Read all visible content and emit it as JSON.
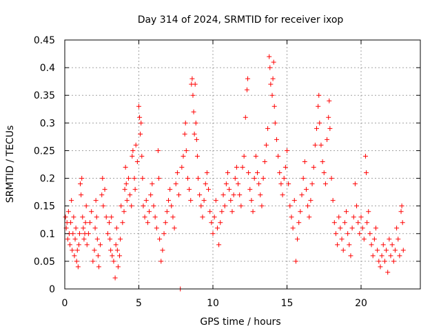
{
  "chart_data": {
    "type": "scatter",
    "title": "Day 314 of 2024, SRMTID for receiver ixop",
    "xlabel": "GPS time / hours",
    "ylabel": "SRMTID / TECUs",
    "xlim": [
      0,
      24
    ],
    "ylim": [
      0,
      0.45
    ],
    "x_ticks": [
      0,
      5,
      10,
      15,
      20
    ],
    "x_tick_labels": [
      "0",
      "5",
      "10",
      "15",
      "20"
    ],
    "y_ticks": [
      0,
      0.05,
      0.1,
      0.15,
      0.2,
      0.25,
      0.3,
      0.35,
      0.4,
      0.45
    ],
    "y_tick_labels": [
      "0",
      "0.05",
      "0.1",
      "0.15",
      "0.2",
      "0.25",
      "0.3",
      "0.35",
      "0.4",
      "0.45"
    ],
    "grid": true,
    "marker": "+",
    "color": "#ff0000",
    "series": [
      {
        "name": "SRMTID",
        "points": [
          [
            0.05,
            0.13
          ],
          [
            0.1,
            0.11
          ],
          [
            0.15,
            0.12
          ],
          [
            0.2,
            0.09
          ],
          [
            0.25,
            0.14
          ],
          [
            0.3,
            0.1
          ],
          [
            0.35,
            0.08
          ],
          [
            0.4,
            0.12
          ],
          [
            0.45,
            0.16
          ],
          [
            0.5,
            0.07
          ],
          [
            0.55,
            0.1
          ],
          [
            0.6,
            0.13
          ],
          [
            0.65,
            0.06
          ],
          [
            0.7,
            0.09
          ],
          [
            0.75,
            0.11
          ],
          [
            0.8,
            0.05
          ],
          [
            0.85,
            0.07
          ],
          [
            0.9,
            0.04
          ],
          [
            0.95,
            0.08
          ],
          [
            1.0,
            0.1
          ],
          [
            1.05,
            0.19
          ],
          [
            1.1,
            0.17
          ],
          [
            1.15,
            0.2
          ],
          [
            1.2,
            0.13
          ],
          [
            1.25,
            0.11
          ],
          [
            1.3,
            0.09
          ],
          [
            1.35,
            0.1
          ],
          [
            1.4,
            0.12
          ],
          [
            1.45,
            0.15
          ],
          [
            1.5,
            0.08
          ],
          [
            1.6,
            0.1
          ],
          [
            1.7,
            0.12
          ],
          [
            1.8,
            0.14
          ],
          [
            1.9,
            0.05
          ],
          [
            2.0,
            0.07
          ],
          [
            2.05,
            0.11
          ],
          [
            2.1,
            0.16
          ],
          [
            2.15,
            0.13
          ],
          [
            2.2,
            0.09
          ],
          [
            2.25,
            0.06
          ],
          [
            2.3,
            0.04
          ],
          [
            2.4,
            0.08
          ],
          [
            2.5,
            0.17
          ],
          [
            2.55,
            0.2
          ],
          [
            2.6,
            0.15
          ],
          [
            2.7,
            0.18
          ],
          [
            2.8,
            0.13
          ],
          [
            2.9,
            0.1
          ],
          [
            3.0,
            0.12
          ],
          [
            3.05,
            0.09
          ],
          [
            3.1,
            0.07
          ],
          [
            3.15,
            0.13
          ],
          [
            3.2,
            0.06
          ],
          [
            3.3,
            0.05
          ],
          [
            3.4,
            0.02
          ],
          [
            3.45,
            0.08
          ],
          [
            3.5,
            0.11
          ],
          [
            3.55,
            0.07
          ],
          [
            3.6,
            0.04
          ],
          [
            3.7,
            0.06
          ],
          [
            3.75,
            0.09
          ],
          [
            3.8,
            0.15
          ],
          [
            3.9,
            0.12
          ],
          [
            4.0,
            0.14
          ],
          [
            4.05,
            0.18
          ],
          [
            4.1,
            0.22
          ],
          [
            4.15,
            0.19
          ],
          [
            4.2,
            0.16
          ],
          [
            4.3,
            0.2
          ],
          [
            4.4,
            0.17
          ],
          [
            4.5,
            0.15
          ],
          [
            4.55,
            0.24
          ],
          [
            4.6,
            0.25
          ],
          [
            4.7,
            0.2
          ],
          [
            4.75,
            0.18
          ],
          [
            4.8,
            0.26
          ],
          [
            4.9,
            0.23
          ],
          [
            5.0,
            0.33
          ],
          [
            5.05,
            0.31
          ],
          [
            5.1,
            0.28
          ],
          [
            5.15,
            0.3
          ],
          [
            5.2,
            0.24
          ],
          [
            5.25,
            0.2
          ],
          [
            5.3,
            0.15
          ],
          [
            5.4,
            0.13
          ],
          [
            5.5,
            0.16
          ],
          [
            5.6,
            0.12
          ],
          [
            5.7,
            0.14
          ],
          [
            5.8,
            0.17
          ],
          [
            5.9,
            0.19
          ],
          [
            6.0,
            0.15
          ],
          [
            6.1,
            0.13
          ],
          [
            6.2,
            0.11
          ],
          [
            6.3,
            0.25
          ],
          [
            6.35,
            0.2
          ],
          [
            6.4,
            0.09
          ],
          [
            6.5,
            0.05
          ],
          [
            6.6,
            0.07
          ],
          [
            6.7,
            0.1
          ],
          [
            6.8,
            0.12
          ],
          [
            6.9,
            0.14
          ],
          [
            7.0,
            0.16
          ],
          [
            7.1,
            0.18
          ],
          [
            7.2,
            0.15
          ],
          [
            7.3,
            0.13
          ],
          [
            7.4,
            0.11
          ],
          [
            7.5,
            0.19
          ],
          [
            7.6,
            0.21
          ],
          [
            7.7,
            0.17
          ],
          [
            7.8,
            0.0
          ],
          [
            7.9,
            0.22
          ],
          [
            8.0,
            0.24
          ],
          [
            8.1,
            0.28
          ],
          [
            8.15,
            0.3
          ],
          [
            8.2,
            0.25
          ],
          [
            8.3,
            0.2
          ],
          [
            8.4,
            0.18
          ],
          [
            8.5,
            0.16
          ],
          [
            8.55,
            0.37
          ],
          [
            8.6,
            0.38
          ],
          [
            8.65,
            0.35
          ],
          [
            8.7,
            0.32
          ],
          [
            8.75,
            0.28
          ],
          [
            8.8,
            0.37
          ],
          [
            8.85,
            0.3
          ],
          [
            8.9,
            0.27
          ],
          [
            8.95,
            0.24
          ],
          [
            9.0,
            0.2
          ],
          [
            9.1,
            0.17
          ],
          [
            9.2,
            0.15
          ],
          [
            9.3,
            0.13
          ],
          [
            9.4,
            0.16
          ],
          [
            9.5,
            0.19
          ],
          [
            9.6,
            0.21
          ],
          [
            9.7,
            0.18
          ],
          [
            9.8,
            0.14
          ],
          [
            9.9,
            0.12
          ],
          [
            10.0,
            0.1
          ],
          [
            10.1,
            0.13
          ],
          [
            10.2,
            0.16
          ],
          [
            10.3,
            0.11
          ],
          [
            10.4,
            0.08
          ],
          [
            10.5,
            0.12
          ],
          [
            10.6,
            0.14
          ],
          [
            10.7,
            0.17
          ],
          [
            10.8,
            0.15
          ],
          [
            10.9,
            0.19
          ],
          [
            11.0,
            0.21
          ],
          [
            11.1,
            0.18
          ],
          [
            11.2,
            0.16
          ],
          [
            11.3,
            0.14
          ],
          [
            11.4,
            0.17
          ],
          [
            11.5,
            0.2
          ],
          [
            11.6,
            0.22
          ],
          [
            11.7,
            0.19
          ],
          [
            11.8,
            0.17
          ],
          [
            11.9,
            0.15
          ],
          [
            12.0,
            0.22
          ],
          [
            12.1,
            0.24
          ],
          [
            12.2,
            0.31
          ],
          [
            12.3,
            0.36
          ],
          [
            12.35,
            0.38
          ],
          [
            12.4,
            0.21
          ],
          [
            12.5,
            0.18
          ],
          [
            12.6,
            0.16
          ],
          [
            12.7,
            0.14
          ],
          [
            12.8,
            0.2
          ],
          [
            12.9,
            0.24
          ],
          [
            13.0,
            0.21
          ],
          [
            13.1,
            0.19
          ],
          [
            13.2,
            0.17
          ],
          [
            13.3,
            0.15
          ],
          [
            13.4,
            0.2
          ],
          [
            13.5,
            0.23
          ],
          [
            13.6,
            0.26
          ],
          [
            13.7,
            0.29
          ],
          [
            13.8,
            0.42
          ],
          [
            13.85,
            0.4
          ],
          [
            13.9,
            0.37
          ],
          [
            14.0,
            0.35
          ],
          [
            14.05,
            0.38
          ],
          [
            14.1,
            0.41
          ],
          [
            14.15,
            0.33
          ],
          [
            14.2,
            0.3
          ],
          [
            14.3,
            0.27
          ],
          [
            14.4,
            0.24
          ],
          [
            14.5,
            0.21
          ],
          [
            14.6,
            0.19
          ],
          [
            14.7,
            0.17
          ],
          [
            14.8,
            0.2
          ],
          [
            14.9,
            0.22
          ],
          [
            15.0,
            0.25
          ],
          [
            15.1,
            0.19
          ],
          [
            15.2,
            0.15
          ],
          [
            15.3,
            0.13
          ],
          [
            15.4,
            0.11
          ],
          [
            15.5,
            0.16
          ],
          [
            15.6,
            0.05
          ],
          [
            15.7,
            0.09
          ],
          [
            15.8,
            0.12
          ],
          [
            15.9,
            0.14
          ],
          [
            16.0,
            0.17
          ],
          [
            16.1,
            0.2
          ],
          [
            16.2,
            0.23
          ],
          [
            16.3,
            0.18
          ],
          [
            16.4,
            0.15
          ],
          [
            16.5,
            0.13
          ],
          [
            16.6,
            0.16
          ],
          [
            16.7,
            0.19
          ],
          [
            16.8,
            0.22
          ],
          [
            16.9,
            0.26
          ],
          [
            17.0,
            0.29
          ],
          [
            17.1,
            0.33
          ],
          [
            17.15,
            0.35
          ],
          [
            17.2,
            0.3
          ],
          [
            17.3,
            0.26
          ],
          [
            17.4,
            0.23
          ],
          [
            17.5,
            0.21
          ],
          [
            17.6,
            0.19
          ],
          [
            17.7,
            0.27
          ],
          [
            17.8,
            0.31
          ],
          [
            17.85,
            0.34
          ],
          [
            17.9,
            0.29
          ],
          [
            18.0,
            0.2
          ],
          [
            18.1,
            0.16
          ],
          [
            18.2,
            0.12
          ],
          [
            18.3,
            0.1
          ],
          [
            18.4,
            0.08
          ],
          [
            18.5,
            0.13
          ],
          [
            18.6,
            0.11
          ],
          [
            18.7,
            0.09
          ],
          [
            18.8,
            0.07
          ],
          [
            18.9,
            0.12
          ],
          [
            19.0,
            0.14
          ],
          [
            19.1,
            0.1
          ],
          [
            19.2,
            0.08
          ],
          [
            19.3,
            0.06
          ],
          [
            19.4,
            0.11
          ],
          [
            19.5,
            0.13
          ],
          [
            19.6,
            0.19
          ],
          [
            19.7,
            0.15
          ],
          [
            19.8,
            0.12
          ],
          [
            19.9,
            0.1
          ],
          [
            20.0,
            0.13
          ],
          [
            20.1,
            0.11
          ],
          [
            20.2,
            0.09
          ],
          [
            20.3,
            0.24
          ],
          [
            20.35,
            0.21
          ],
          [
            20.4,
            0.12
          ],
          [
            20.5,
            0.14
          ],
          [
            20.6,
            0.1
          ],
          [
            20.7,
            0.08
          ],
          [
            20.8,
            0.06
          ],
          [
            20.9,
            0.09
          ],
          [
            21.0,
            0.11
          ],
          [
            21.1,
            0.07
          ],
          [
            21.2,
            0.05
          ],
          [
            21.3,
            0.04
          ],
          [
            21.4,
            0.06
          ],
          [
            21.5,
            0.08
          ],
          [
            21.6,
            0.05
          ],
          [
            21.7,
            0.07
          ],
          [
            21.8,
            0.03
          ],
          [
            21.9,
            0.09
          ],
          [
            22.0,
            0.06
          ],
          [
            22.1,
            0.08
          ],
          [
            22.2,
            0.05
          ],
          [
            22.3,
            0.07
          ],
          [
            22.4,
            0.11
          ],
          [
            22.5,
            0.09
          ],
          [
            22.6,
            0.06
          ],
          [
            22.7,
            0.14
          ],
          [
            22.75,
            0.15
          ],
          [
            22.8,
            0.12
          ],
          [
            22.85,
            0.07
          ]
        ]
      }
    ]
  }
}
